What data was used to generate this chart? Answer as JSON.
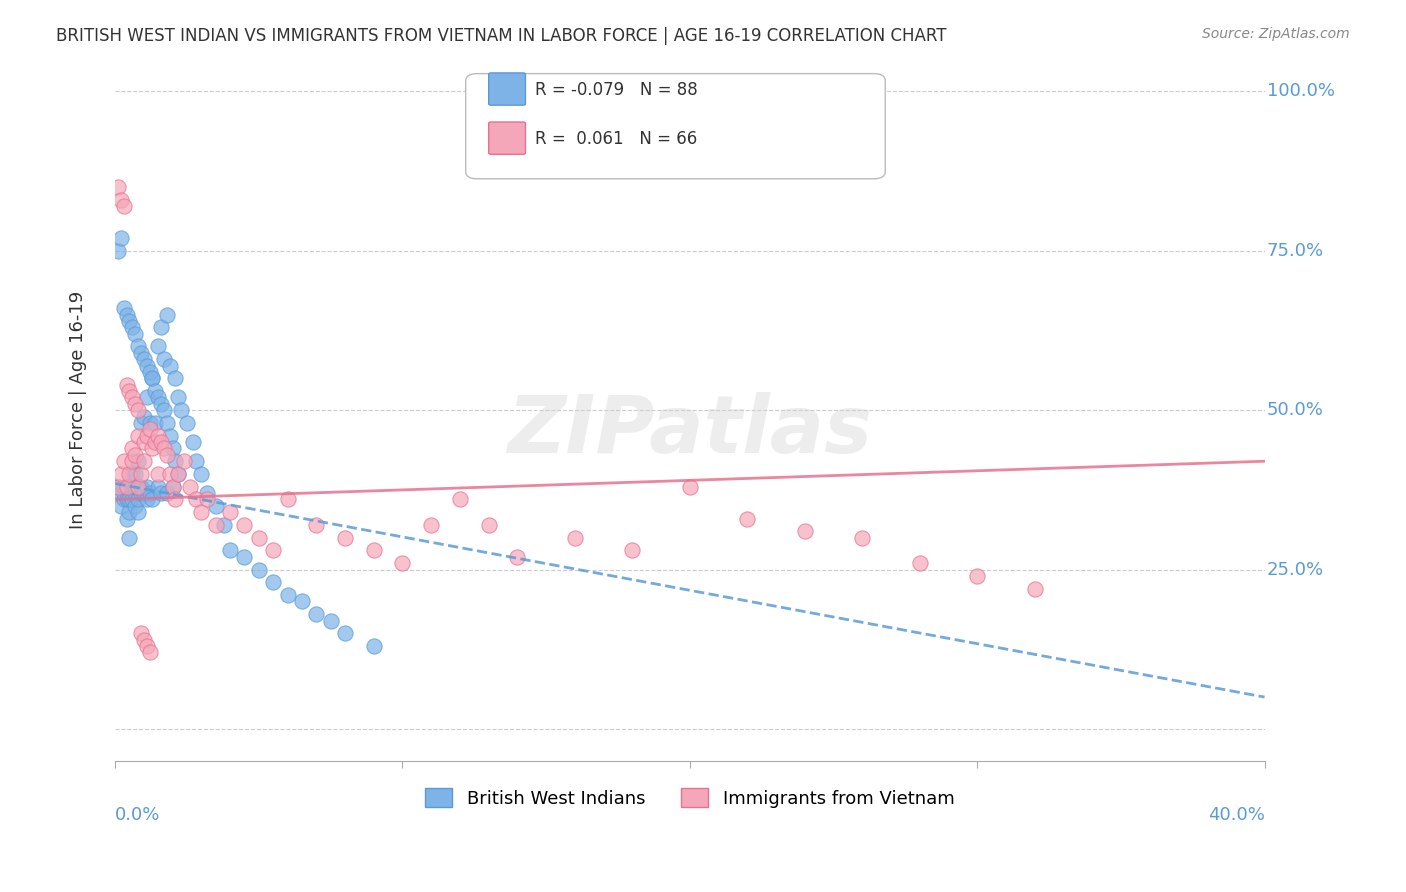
{
  "title": "BRITISH WEST INDIAN VS IMMIGRANTS FROM VIETNAM IN LABOR FORCE | AGE 16-19 CORRELATION CHART",
  "source": "Source: ZipAtlas.com",
  "ylabel": "In Labor Force | Age 16-19",
  "yticks": [
    0.0,
    0.25,
    0.5,
    0.75,
    1.0
  ],
  "xlim": [
    0.0,
    0.4
  ],
  "ylim": [
    -0.05,
    1.05
  ],
  "watermark": "ZIPatlas",
  "blue": {
    "label": "British West Indians",
    "R": -0.079,
    "N": 88,
    "color": "#7EB3E8",
    "edge_color": "#5A9BD5",
    "trend_color": "#5A9BD5",
    "trend_style": "--",
    "x": [
      0.001,
      0.002,
      0.002,
      0.003,
      0.003,
      0.003,
      0.004,
      0.004,
      0.004,
      0.005,
      0.005,
      0.005,
      0.005,
      0.006,
      0.006,
      0.006,
      0.007,
      0.007,
      0.007,
      0.007,
      0.008,
      0.008,
      0.008,
      0.008,
      0.009,
      0.009,
      0.009,
      0.01,
      0.01,
      0.011,
      0.011,
      0.011,
      0.012,
      0.012,
      0.013,
      0.013,
      0.014,
      0.015,
      0.015,
      0.016,
      0.016,
      0.017,
      0.018,
      0.018,
      0.019,
      0.02,
      0.021,
      0.022,
      0.023,
      0.025,
      0.027,
      0.028,
      0.03,
      0.032,
      0.035,
      0.038,
      0.04,
      0.045,
      0.05,
      0.055,
      0.06,
      0.065,
      0.07,
      0.075,
      0.08,
      0.09,
      0.001,
      0.002,
      0.003,
      0.004,
      0.005,
      0.006,
      0.007,
      0.008,
      0.009,
      0.01,
      0.011,
      0.012,
      0.013,
      0.014,
      0.015,
      0.016,
      0.017,
      0.018,
      0.019,
      0.02,
      0.021,
      0.022
    ],
    "y": [
      0.38,
      0.37,
      0.35,
      0.36,
      0.37,
      0.38,
      0.33,
      0.36,
      0.38,
      0.3,
      0.34,
      0.36,
      0.38,
      0.36,
      0.38,
      0.4,
      0.35,
      0.37,
      0.38,
      0.4,
      0.34,
      0.36,
      0.38,
      0.42,
      0.37,
      0.38,
      0.48,
      0.37,
      0.49,
      0.36,
      0.38,
      0.52,
      0.37,
      0.48,
      0.36,
      0.55,
      0.48,
      0.38,
      0.6,
      0.37,
      0.63,
      0.58,
      0.37,
      0.65,
      0.57,
      0.38,
      0.55,
      0.52,
      0.5,
      0.48,
      0.45,
      0.42,
      0.4,
      0.37,
      0.35,
      0.32,
      0.28,
      0.27,
      0.25,
      0.23,
      0.21,
      0.2,
      0.18,
      0.17,
      0.15,
      0.13,
      0.75,
      0.77,
      0.66,
      0.65,
      0.64,
      0.63,
      0.62,
      0.6,
      0.59,
      0.58,
      0.57,
      0.56,
      0.55,
      0.53,
      0.52,
      0.51,
      0.5,
      0.48,
      0.46,
      0.44,
      0.42,
      0.4
    ],
    "trend_x": [
      0.0,
      0.4
    ],
    "trend_y": [
      0.385,
      0.05
    ]
  },
  "pink": {
    "label": "Immigrants from Vietnam",
    "R": 0.061,
    "N": 66,
    "color": "#F4A7B9",
    "edge_color": "#E87090",
    "trend_color": "#E87090",
    "trend_style": "-",
    "x": [
      0.001,
      0.002,
      0.003,
      0.004,
      0.005,
      0.006,
      0.006,
      0.007,
      0.008,
      0.008,
      0.009,
      0.01,
      0.01,
      0.011,
      0.012,
      0.013,
      0.014,
      0.015,
      0.015,
      0.016,
      0.017,
      0.018,
      0.019,
      0.02,
      0.021,
      0.022,
      0.024,
      0.026,
      0.028,
      0.03,
      0.032,
      0.035,
      0.04,
      0.045,
      0.05,
      0.055,
      0.06,
      0.07,
      0.08,
      0.09,
      0.1,
      0.11,
      0.12,
      0.13,
      0.14,
      0.16,
      0.18,
      0.2,
      0.22,
      0.24,
      0.26,
      0.28,
      0.3,
      0.32,
      0.001,
      0.002,
      0.003,
      0.004,
      0.005,
      0.006,
      0.007,
      0.008,
      0.009,
      0.01,
      0.011,
      0.012
    ],
    "y": [
      0.38,
      0.4,
      0.42,
      0.38,
      0.4,
      0.42,
      0.44,
      0.43,
      0.38,
      0.46,
      0.4,
      0.42,
      0.45,
      0.46,
      0.47,
      0.44,
      0.45,
      0.4,
      0.46,
      0.45,
      0.44,
      0.43,
      0.4,
      0.38,
      0.36,
      0.4,
      0.42,
      0.38,
      0.36,
      0.34,
      0.36,
      0.32,
      0.34,
      0.32,
      0.3,
      0.28,
      0.36,
      0.32,
      0.3,
      0.28,
      0.26,
      0.32,
      0.36,
      0.32,
      0.27,
      0.3,
      0.28,
      0.38,
      0.33,
      0.31,
      0.3,
      0.26,
      0.24,
      0.22,
      0.85,
      0.83,
      0.82,
      0.54,
      0.53,
      0.52,
      0.51,
      0.5,
      0.15,
      0.14,
      0.13,
      0.12
    ],
    "trend_x": [
      0.0,
      0.4
    ],
    "trend_y": [
      0.36,
      0.42
    ]
  },
  "bg_color": "#FFFFFF",
  "title_color": "#333333",
  "axis_label_color": "#5A9BD5",
  "grid_color": "#CCCCCC"
}
